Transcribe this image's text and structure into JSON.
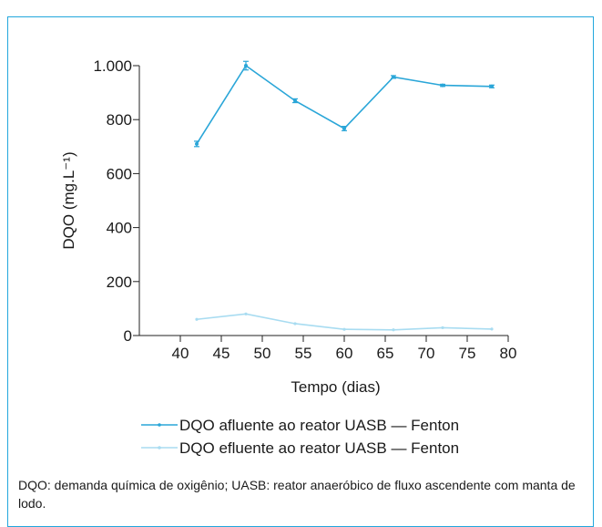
{
  "chart_data": {
    "type": "line",
    "ylabel": "DQO (mg.L⁻¹)",
    "xlabel": "Tempo (dias)",
    "ylim": [
      0,
      1000
    ],
    "xlim": [
      35,
      80
    ],
    "yticks": [
      0,
      200,
      400,
      600,
      800,
      1000
    ],
    "ytick_labels": [
      "0",
      "200",
      "400",
      "600",
      "800",
      "1.000"
    ],
    "xticks": [
      40,
      45,
      50,
      55,
      60,
      65,
      70,
      75,
      80
    ],
    "xtick_labels": [
      "40",
      "45",
      "50",
      "55",
      "60",
      "65",
      "70",
      "75",
      "80"
    ],
    "grid": false,
    "legend_position": "bottom",
    "series": [
      {
        "name": "DQO afluente ao reator UASB — Fenton",
        "color": "#2aa6d8",
        "x": [
          42,
          48,
          54,
          60,
          66,
          72,
          78
        ],
        "y": [
          710,
          1000,
          870,
          767,
          958,
          927,
          923
        ],
        "error": [
          10,
          16,
          7,
          8,
          5,
          4,
          5
        ]
      },
      {
        "name": "DQO efluente ao reator UASB — Fenton",
        "color": "#a8dcf1",
        "x": [
          42,
          48,
          54,
          60,
          66,
          72,
          78
        ],
        "y": [
          60,
          80,
          44,
          23,
          21,
          29,
          24
        ],
        "error": [
          0,
          0,
          0,
          0,
          0,
          0,
          0
        ]
      }
    ]
  },
  "footnote": "DQO: demanda química de oxigênio; UASB: reator anaeróbico de fluxo ascendente com manta de lodo."
}
